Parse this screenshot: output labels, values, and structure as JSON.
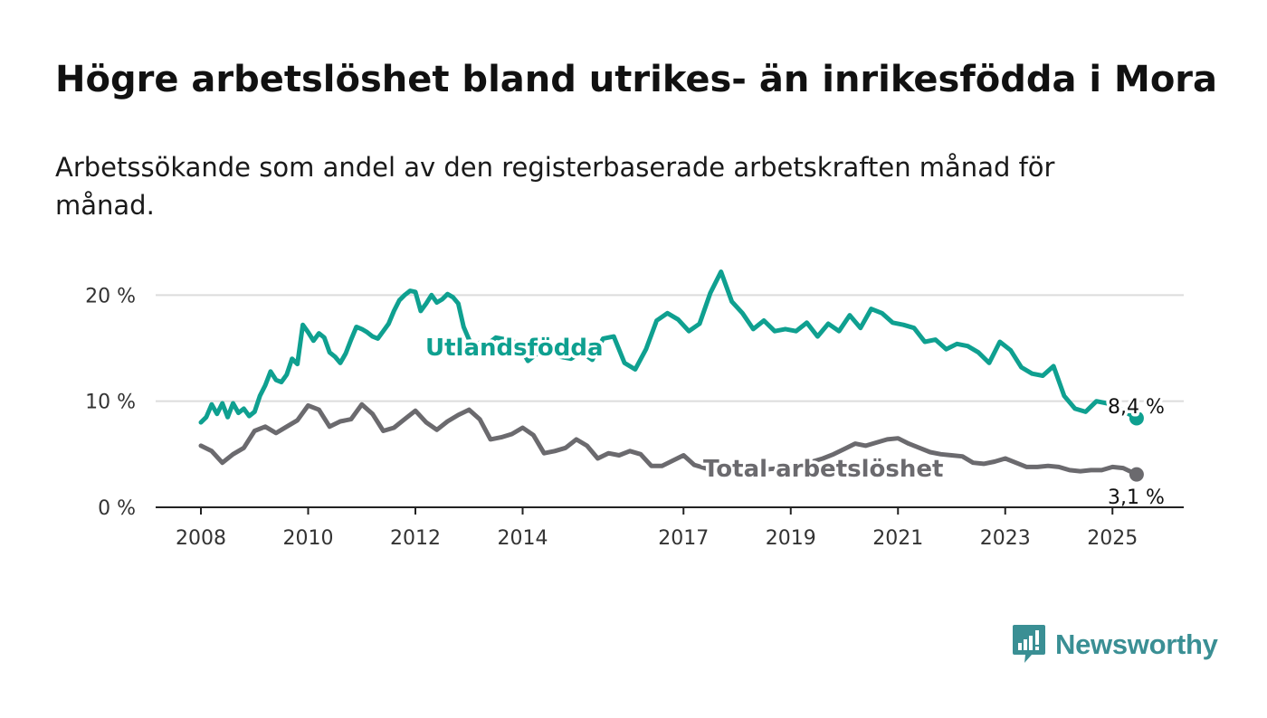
{
  "title": "Högre arbetslöshet bland utrikes- än inrikesfödda i Mora",
  "subtitle": "Arbetssökande som andel av den registerbaserade arbetskraften månad för månad.",
  "logo": {
    "text": "Newsworthy",
    "icon": "bar-chart-speech-bubble-icon"
  },
  "colors": {
    "utlandsfodda": "#0fa090",
    "total": "#6b6a6e",
    "grid": "#dcdcdc",
    "axis": "#222222"
  },
  "chart_data": {
    "type": "line",
    "xlim": [
      2008,
      2026.3
    ],
    "ylim": [
      0,
      22.5
    ],
    "x_ticks": [
      {
        "value": 2008,
        "label": "2008"
      },
      {
        "value": 2010,
        "label": "2010"
      },
      {
        "value": 2012,
        "label": "2012"
      },
      {
        "value": 2014,
        "label": "2014"
      },
      {
        "value": 2017,
        "label": "2017"
      },
      {
        "value": 2019,
        "label": "2019"
      },
      {
        "value": 2021,
        "label": "2021"
      },
      {
        "value": 2023,
        "label": "2023"
      },
      {
        "value": 2025,
        "label": "2025"
      }
    ],
    "y_ticks": [
      {
        "value": 0,
        "label": "0 %"
      },
      {
        "value": 10,
        "label": "10 %"
      },
      {
        "value": 20,
        "label": "20 %"
      }
    ],
    "grid": true,
    "series": [
      {
        "name": "Utlandsfödda",
        "label": "Utlandsfödda",
        "end_label": "8,4 %",
        "x": [
          2008.0,
          2008.1,
          2008.2,
          2008.3,
          2008.4,
          2008.5,
          2008.6,
          2008.7,
          2008.8,
          2008.9,
          2009.0,
          2009.1,
          2009.2,
          2009.3,
          2009.4,
          2009.5,
          2009.6,
          2009.7,
          2009.8,
          2009.9,
          2010.0,
          2010.1,
          2010.2,
          2010.3,
          2010.4,
          2010.5,
          2010.6,
          2010.7,
          2010.8,
          2010.9,
          2011.0,
          2011.1,
          2011.2,
          2011.3,
          2011.4,
          2011.5,
          2011.6,
          2011.7,
          2011.8,
          2011.9,
          2012.0,
          2012.1,
          2012.2,
          2012.3,
          2012.4,
          2012.5,
          2012.6,
          2012.7,
          2012.8,
          2012.9,
          2013.0,
          2013.1,
          2013.2,
          2013.3,
          2013.5,
          2013.7,
          2013.9,
          2014.1,
          2014.3,
          2014.5,
          2014.7,
          2014.9,
          2015.1,
          2015.3,
          2015.5,
          2015.7,
          2015.9,
          2016.1,
          2016.3,
          2016.5,
          2016.7,
          2016.9,
          2017.1,
          2017.3,
          2017.5,
          2017.7,
          2017.9,
          2018.1,
          2018.3,
          2018.5,
          2018.7,
          2018.9,
          2019.1,
          2019.3,
          2019.5,
          2019.7,
          2019.9,
          2020.1,
          2020.3,
          2020.5,
          2020.7,
          2020.9,
          2021.1,
          2021.3,
          2021.5,
          2021.7,
          2021.9,
          2022.1,
          2022.3,
          2022.5,
          2022.7,
          2022.9,
          2023.1,
          2023.3,
          2023.5,
          2023.7,
          2023.9,
          2024.1,
          2024.3,
          2024.5,
          2024.7,
          2024.9,
          2025.1,
          2025.3,
          2025.45
        ],
        "y": [
          8.0,
          8.5,
          9.7,
          8.8,
          9.8,
          8.5,
          9.8,
          8.9,
          9.3,
          8.6,
          9.0,
          10.5,
          11.5,
          12.8,
          12.0,
          11.8,
          12.5,
          14.0,
          13.5,
          17.2,
          16.5,
          15.7,
          16.4,
          16.0,
          14.6,
          14.2,
          13.6,
          14.5,
          15.8,
          17.0,
          16.8,
          16.5,
          16.1,
          15.9,
          16.6,
          17.3,
          18.5,
          19.5,
          20.0,
          20.4,
          20.3,
          18.5,
          19.2,
          20.0,
          19.3,
          19.6,
          20.1,
          19.8,
          19.2,
          17.0,
          15.8,
          15.1,
          15.5,
          15.2,
          16.0,
          15.8,
          15.5,
          13.8,
          14.6,
          15.3,
          14.2,
          14.0,
          14.6,
          13.9,
          15.9,
          16.1,
          13.6,
          13.0,
          14.9,
          17.6,
          18.3,
          17.7,
          16.6,
          17.3,
          20.2,
          22.2,
          19.4,
          18.3,
          16.8,
          17.6,
          16.6,
          16.8,
          16.6,
          17.4,
          16.1,
          17.3,
          16.6,
          18.1,
          16.9,
          18.7,
          18.3,
          17.4,
          17.2,
          16.9,
          15.6,
          15.8,
          14.9,
          15.4,
          15.2,
          14.6,
          13.6,
          15.6,
          14.8,
          13.2,
          12.6,
          12.4,
          13.3,
          10.5,
          9.3,
          9.0,
          10.0,
          9.8,
          9.4,
          8.8,
          8.4
        ]
      },
      {
        "name": "Total arbetslöshet",
        "label": "Total arbetslöshet",
        "end_label": "3,1 %",
        "x": [
          2008.0,
          2008.2,
          2008.4,
          2008.6,
          2008.8,
          2009.0,
          2009.2,
          2009.4,
          2009.6,
          2009.8,
          2010.0,
          2010.2,
          2010.4,
          2010.6,
          2010.8,
          2011.0,
          2011.2,
          2011.4,
          2011.6,
          2011.8,
          2012.0,
          2012.2,
          2012.4,
          2012.6,
          2012.8,
          2013.0,
          2013.2,
          2013.4,
          2013.6,
          2013.8,
          2014.0,
          2014.2,
          2014.4,
          2014.6,
          2014.8,
          2015.0,
          2015.2,
          2015.4,
          2015.6,
          2015.8,
          2016.0,
          2016.2,
          2016.4,
          2016.6,
          2016.8,
          2017.0,
          2017.2,
          2017.4,
          2017.6,
          2017.8,
          2018.0,
          2018.2,
          2018.4,
          2018.6,
          2018.8,
          2019.0,
          2019.2,
          2019.4,
          2019.6,
          2019.8,
          2020.0,
          2020.2,
          2020.4,
          2020.6,
          2020.8,
          2021.0,
          2021.2,
          2021.4,
          2021.6,
          2021.8,
          2022.0,
          2022.2,
          2022.4,
          2022.6,
          2022.8,
          2023.0,
          2023.2,
          2023.4,
          2023.6,
          2023.8,
          2024.0,
          2024.2,
          2024.4,
          2024.6,
          2024.8,
          2025.0,
          2025.2,
          2025.45
        ],
        "y": [
          5.8,
          5.3,
          4.2,
          5.0,
          5.6,
          7.2,
          7.6,
          7.0,
          7.6,
          8.2,
          9.6,
          9.2,
          7.6,
          8.1,
          8.3,
          9.7,
          8.8,
          7.2,
          7.5,
          8.3,
          9.1,
          8.0,
          7.3,
          8.1,
          8.7,
          9.2,
          8.3,
          6.4,
          6.6,
          6.9,
          7.5,
          6.8,
          5.1,
          5.3,
          5.6,
          6.4,
          5.8,
          4.6,
          5.1,
          4.9,
          5.3,
          5.0,
          3.9,
          3.9,
          4.4,
          4.9,
          4.0,
          3.7,
          3.4,
          3.1,
          3.3,
          3.3,
          3.4,
          3.6,
          3.7,
          4.0,
          4.1,
          4.3,
          4.6,
          5.0,
          5.5,
          6.0,
          5.8,
          6.1,
          6.4,
          6.5,
          6.0,
          5.6,
          5.2,
          5.0,
          4.9,
          4.8,
          4.2,
          4.1,
          4.3,
          4.6,
          4.2,
          3.8,
          3.8,
          3.9,
          3.8,
          3.5,
          3.4,
          3.5,
          3.5,
          3.8,
          3.7,
          3.1
        ]
      }
    ]
  }
}
